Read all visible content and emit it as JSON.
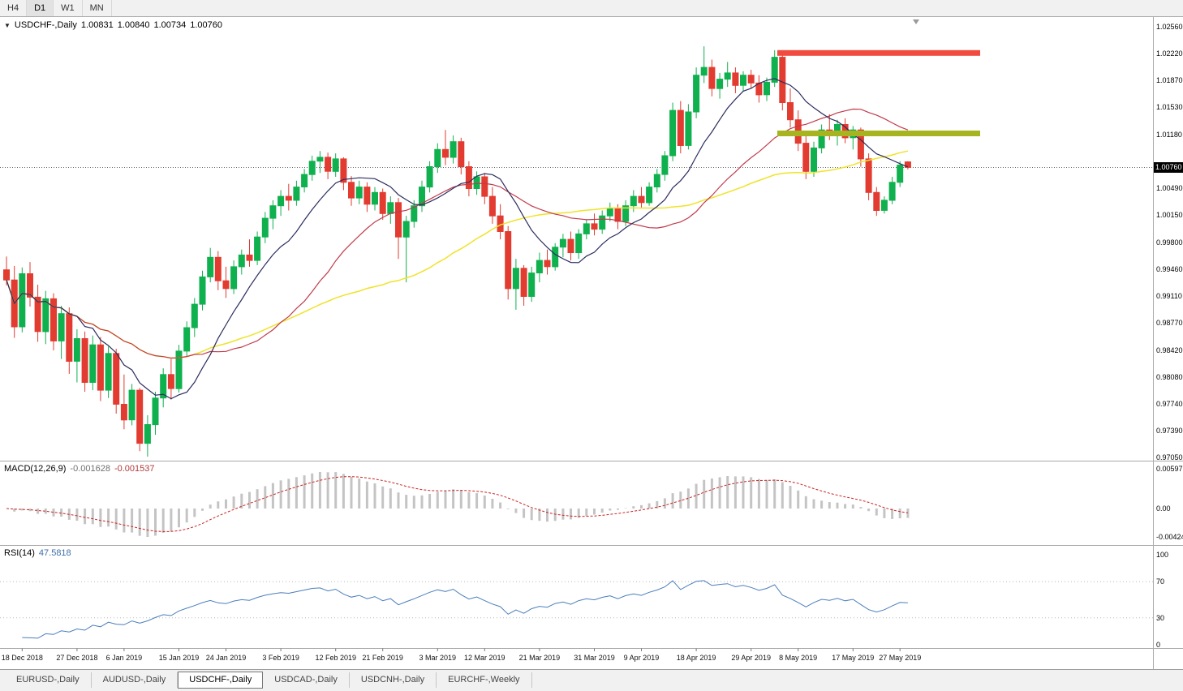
{
  "icons": {
    "chart_menu_arrow": "▼"
  },
  "window": {
    "timeframe_toolbar": {
      "buttons": [
        {
          "label": "H4",
          "active": false
        },
        {
          "label": "D1",
          "active": true
        },
        {
          "label": "W1",
          "active": false
        },
        {
          "label": "MN",
          "active": false
        }
      ]
    },
    "tabs": [
      {
        "label": "EURUSD-,Daily",
        "active": false
      },
      {
        "label": "AUDUSD-,Daily",
        "active": false
      },
      {
        "label": "USDCHF-,Daily",
        "active": true
      },
      {
        "label": "USDCAD-,Daily",
        "active": false
      },
      {
        "label": "USDCNH-,Daily",
        "active": false
      },
      {
        "label": "EURCHF-,Weekly",
        "active": false
      }
    ]
  },
  "main_chart": {
    "title": "USDCHF-,Daily",
    "open": "1.00831",
    "high": "1.00840",
    "low": "1.00734",
    "close": "1.00760",
    "current_price": "1.00760",
    "price_axis_labels": [
      "1.02560",
      "1.02220",
      "1.01870",
      "1.01530",
      "1.01180",
      "1.00490",
      "1.00150",
      "0.99800",
      "0.99460",
      "0.99110",
      "0.98770",
      "0.98420",
      "0.98080",
      "0.97740",
      "0.97390",
      "0.97050"
    ],
    "levels": [
      {
        "name": "resistance",
        "price": 1.02225,
        "color": "#F04B3E"
      },
      {
        "name": "support",
        "price": 1.01195,
        "color": "#A6B51F"
      }
    ]
  },
  "macd_pane": {
    "label": "MACD(12,26,9)",
    "macd_value": "-0.001628",
    "signal_value": "-0.001537",
    "axis_labels": [
      "0.00597",
      "0.00",
      "-0.00424"
    ]
  },
  "rsi_pane": {
    "label": "RSI(14)",
    "value": "47.5818",
    "axis_labels": [
      "100",
      "70",
      "30",
      "0"
    ],
    "levels": [
      70,
      30
    ]
  },
  "chart_data": {
    "type": "candlestick",
    "title": "USDCHF-,Daily",
    "symbol": "USDCHF-",
    "timeframe": "Daily",
    "y_axis_range": [
      0.9705,
      1.0256
    ],
    "horizontal_levels": [
      1.02225,
      1.01195
    ],
    "ohlc_current": {
      "open": 1.00831,
      "high": 1.0084,
      "low": 1.00734,
      "close": 1.0076
    },
    "date_labels": [
      "18 Dec 2018",
      "27 Dec 2018",
      "6 Jan 2019",
      "15 Jan 2019",
      "24 Jan 2019",
      "3 Feb 2019",
      "12 Feb 2019",
      "21 Feb 2019",
      "3 Mar 2019",
      "12 Mar 2019",
      "21 Mar 2019",
      "31 Mar 2019",
      "9 Apr 2019",
      "18 Apr 2019",
      "29 Apr 2019",
      "8 May 2019",
      "17 May 2019",
      "27 May 2019"
    ],
    "date_label_indices": [
      2,
      9,
      15,
      22,
      28,
      35,
      42,
      48,
      55,
      61,
      68,
      75,
      81,
      88,
      95,
      101,
      108,
      114
    ],
    "moving_averages": [
      {
        "period": 10,
        "color": "#2B2D5E"
      },
      {
        "period": 25,
        "color": "#C13B4B"
      },
      {
        "period": 45,
        "color": "#EFE32A"
      }
    ],
    "indicators": [
      {
        "name": "MACD",
        "params": [
          12,
          26,
          9
        ],
        "current": [
          -0.001628,
          -0.001537
        ]
      },
      {
        "name": "RSI",
        "params": [
          14
        ],
        "current": 47.5818
      }
    ],
    "candles": [
      [
        0.9945,
        0.9962,
        0.9925,
        0.9932
      ],
      [
        0.9932,
        0.995,
        0.9858,
        0.9872
      ],
      [
        0.9872,
        0.9948,
        0.9865,
        0.994
      ],
      [
        0.994,
        0.9955,
        0.9898,
        0.991
      ],
      [
        0.991,
        0.9926,
        0.9853,
        0.9866
      ],
      [
        0.9866,
        0.9918,
        0.985,
        0.9908
      ],
      [
        0.9908,
        0.9915,
        0.9842,
        0.9854
      ],
      [
        0.9854,
        0.9899,
        0.9831,
        0.9889
      ],
      [
        0.9889,
        0.9897,
        0.9812,
        0.9828
      ],
      [
        0.9828,
        0.9869,
        0.9801,
        0.9857
      ],
      [
        0.9857,
        0.9866,
        0.9789,
        0.9801
      ],
      [
        0.9801,
        0.9861,
        0.9791,
        0.9849
      ],
      [
        0.9849,
        0.9859,
        0.9777,
        0.9791
      ],
      [
        0.9791,
        0.9847,
        0.9781,
        0.9838
      ],
      [
        0.9838,
        0.9844,
        0.9761,
        0.9773
      ],
      [
        0.9773,
        0.9811,
        0.9741,
        0.9753
      ],
      [
        0.9753,
        0.9799,
        0.9746,
        0.9791
      ],
      [
        0.9791,
        0.9794,
        0.9713,
        0.9723
      ],
      [
        0.9723,
        0.9759,
        0.9706,
        0.9747
      ],
      [
        0.9747,
        0.9789,
        0.9734,
        0.9781
      ],
      [
        0.9781,
        0.9819,
        0.9769,
        0.9811
      ],
      [
        0.9811,
        0.9831,
        0.9779,
        0.9793
      ],
      [
        0.9793,
        0.9849,
        0.9788,
        0.9841
      ],
      [
        0.9841,
        0.9879,
        0.9834,
        0.9871
      ],
      [
        0.9871,
        0.9909,
        0.9859,
        0.9901
      ],
      [
        0.9901,
        0.9944,
        0.9893,
        0.9936
      ],
      [
        0.9936,
        0.9973,
        0.9929,
        0.9961
      ],
      [
        0.9961,
        0.9969,
        0.9919,
        0.9931
      ],
      [
        0.9931,
        0.9949,
        0.9909,
        0.9921
      ],
      [
        0.9921,
        0.9957,
        0.9914,
        0.9949
      ],
      [
        0.9949,
        0.9971,
        0.9939,
        0.9964
      ],
      [
        0.9964,
        0.9984,
        0.9949,
        0.9957
      ],
      [
        0.9957,
        0.9994,
        0.9951,
        0.9987
      ],
      [
        0.9987,
        1.0019,
        0.9979,
        1.0011
      ],
      [
        1.0011,
        1.0034,
        0.9997,
        1.0027
      ],
      [
        1.0027,
        1.0047,
        1.0014,
        1.0039
      ],
      [
        1.0039,
        1.0055,
        1.0021,
        1.0034
      ],
      [
        1.0034,
        1.0059,
        1.0027,
        1.0051
      ],
      [
        1.0051,
        1.0074,
        1.0044,
        1.0067
      ],
      [
        1.0067,
        1.0091,
        1.0059,
        1.0084
      ],
      [
        1.0084,
        1.0097,
        1.0069,
        1.0089
      ],
      [
        1.0089,
        1.0095,
        1.0061,
        1.0071
      ],
      [
        1.0071,
        1.0094,
        1.0064,
        1.0087
      ],
      [
        1.0087,
        1.0089,
        1.0047,
        1.0057
      ],
      [
        1.0057,
        1.0065,
        1.0027,
        1.0037
      ],
      [
        1.0037,
        1.0059,
        1.0029,
        1.0051
      ],
      [
        1.0051,
        1.0057,
        1.0019,
        1.0029
      ],
      [
        1.0029,
        1.0051,
        1.0021,
        1.0044
      ],
      [
        1.0044,
        1.0049,
        1.0009,
        1.0017
      ],
      [
        1.0017,
        1.0039,
        1.0004,
        1.0031
      ],
      [
        1.0031,
        1.0037,
        0.9959,
        0.9987
      ],
      [
        0.9987,
        1.0014,
        0.9929,
        1.0007
      ],
      [
        1.0007,
        1.0034,
        0.9999,
        1.0027
      ],
      [
        1.0027,
        1.0059,
        1.0019,
        1.0051
      ],
      [
        1.0051,
        1.0084,
        1.0044,
        1.0077
      ],
      [
        1.0077,
        1.0107,
        1.0069,
        1.0099
      ],
      [
        1.0099,
        1.0124,
        1.0079,
        1.0089
      ],
      [
        1.0089,
        1.0117,
        1.0081,
        1.0109
      ],
      [
        1.0109,
        1.0114,
        1.0067,
        1.0077
      ],
      [
        1.0077,
        1.0084,
        1.0039,
        1.0049
      ],
      [
        1.0049,
        1.0071,
        1.0041,
        1.0064
      ],
      [
        1.0064,
        1.0069,
        1.0029,
        1.0039
      ],
      [
        1.0039,
        1.0051,
        1.0004,
        1.0014
      ],
      [
        1.0014,
        1.0029,
        0.9984,
        0.9994
      ],
      [
        0.9994,
        1.0001,
        0.9907,
        0.9921
      ],
      [
        0.9921,
        0.9959,
        0.9894,
        0.9947
      ],
      [
        0.9947,
        0.9951,
        0.9899,
        0.9911
      ],
      [
        0.9911,
        0.9949,
        0.9904,
        0.9941
      ],
      [
        0.9941,
        0.9967,
        0.9929,
        0.9957
      ],
      [
        0.9957,
        0.9971,
        0.9939,
        0.9949
      ],
      [
        0.9949,
        0.9979,
        0.9944,
        0.9974
      ],
      [
        0.9974,
        0.9991,
        0.9961,
        0.9984
      ],
      [
        0.9984,
        0.9994,
        0.9957,
        0.9967
      ],
      [
        0.9967,
        0.9997,
        0.9959,
        0.9991
      ],
      [
        0.9991,
        1.0009,
        0.9984,
        1.0004
      ],
      [
        1.0004,
        1.0017,
        0.9989,
        0.9997
      ],
      [
        0.9997,
        1.0021,
        0.9991,
        1.0014
      ],
      [
        1.0014,
        1.0031,
        1.0007,
        1.0024
      ],
      [
        1.0024,
        1.0029,
        0.9997,
        1.0007
      ],
      [
        1.0007,
        1.0034,
        1.0001,
        1.0027
      ],
      [
        1.0027,
        1.0047,
        1.0019,
        1.0039
      ],
      [
        1.0039,
        1.0051,
        1.0024,
        1.0031
      ],
      [
        1.0031,
        1.0057,
        1.0027,
        1.0051
      ],
      [
        1.0051,
        1.0074,
        1.0044,
        1.0067
      ],
      [
        1.0067,
        1.0097,
        1.0059,
        1.0091
      ],
      [
        1.0091,
        1.0159,
        1.0084,
        1.0149
      ],
      [
        1.0149,
        1.0161,
        1.0094,
        1.0104
      ],
      [
        1.0104,
        1.0157,
        1.0099,
        1.0147
      ],
      [
        1.0147,
        1.0204,
        1.0139,
        1.0194
      ],
      [
        1.0194,
        1.0231,
        1.0184,
        1.0204
      ],
      [
        1.0204,
        1.0214,
        1.0167,
        1.0177
      ],
      [
        1.0177,
        1.0197,
        1.0164,
        1.0189
      ],
      [
        1.0189,
        1.0211,
        1.0179,
        1.0197
      ],
      [
        1.0197,
        1.0204,
        1.0171,
        1.0181
      ],
      [
        1.0181,
        1.0199,
        1.0174,
        1.0194
      ],
      [
        1.0194,
        1.0201,
        1.0177,
        1.0184
      ],
      [
        1.0184,
        1.0194,
        1.0159,
        1.0169
      ],
      [
        1.0169,
        1.0191,
        1.0161,
        1.0185
      ],
      [
        1.0185,
        1.0226,
        1.0179,
        1.0217
      ],
      [
        1.0217,
        1.0223,
        1.0149,
        1.0159
      ],
      [
        1.0159,
        1.0177,
        1.0127,
        1.0137
      ],
      [
        1.0137,
        1.0149,
        1.0097,
        1.0107
      ],
      [
        1.0107,
        1.0121,
        1.0061,
        1.0071
      ],
      [
        1.0071,
        1.0109,
        1.0064,
        1.0101
      ],
      [
        1.0101,
        1.0131,
        1.0094,
        1.0124
      ],
      [
        1.0124,
        1.0144,
        1.0111,
        1.0117
      ],
      [
        1.0117,
        1.0137,
        1.0104,
        1.0131
      ],
      [
        1.0131,
        1.0139,
        1.0107,
        1.0114
      ],
      [
        1.0114,
        1.0129,
        1.0099,
        1.0124
      ],
      [
        1.0124,
        1.0127,
        1.0077,
        1.0087
      ],
      [
        1.0087,
        1.0094,
        1.0034,
        1.0044
      ],
      [
        1.0044,
        1.0051,
        1.0014,
        1.0021
      ],
      [
        1.0021,
        1.0039,
        1.0017,
        1.0034
      ],
      [
        1.0034,
        1.0064,
        1.0029,
        1.0057
      ],
      [
        1.0057,
        1.0084,
        1.0051,
        1.0079
      ],
      [
        1.00831,
        1.0084,
        1.00734,
        1.0076
      ]
    ]
  },
  "colors": {
    "bull": "#0FB04E",
    "bear": "#E23B30",
    "ma_fast": "#2B2D5E",
    "ma_mid": "#C13B4B",
    "ma_slow": "#EFE32A",
    "macd_hist": "#C4C4C4",
    "macd_signal": "#CC2222",
    "rsi": "#4A7EBD",
    "chrome_bg": "#F1F1F1",
    "tag_bg": "#000000"
  }
}
